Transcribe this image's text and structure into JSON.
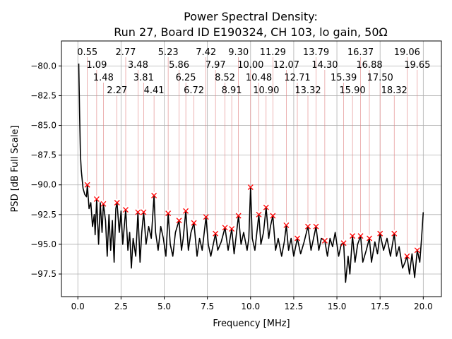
{
  "chart_data": {
    "type": "line",
    "title": "Power Spectral Density:",
    "subtitle": "Run 27, Board ID E190324, CH 103, lo gain, 50Ω",
    "xlabel": "Frequency [MHz]",
    "ylabel": "PSD [dB Full Scale]",
    "xlim": [
      -0.95,
      21.05
    ],
    "ylim": [
      -99.4,
      -77.9
    ],
    "xticks": [
      0,
      2.5,
      5,
      7.5,
      10,
      12.5,
      15,
      17.5,
      20
    ],
    "xtick_labels": [
      "0.0",
      "2.5",
      "5.0",
      "7.5",
      "10.0",
      "12.5",
      "15.0",
      "17.5",
      "20.0"
    ],
    "yticks": [
      -80,
      -82.5,
      -85,
      -87.5,
      -90,
      -92.5,
      -95,
      -97.5
    ],
    "ytick_labels": [
      "−80.0",
      "−82.5",
      "−85.0",
      "−87.5",
      "−90.0",
      "−92.5",
      "−95.0",
      "−97.5"
    ],
    "grid": true,
    "line_color": "#000000",
    "marker_color": "#ff0000",
    "line": [
      [
        0.05,
        -79.8
      ],
      [
        0.1,
        -84
      ],
      [
        0.15,
        -87.5
      ],
      [
        0.2,
        -88.8
      ],
      [
        0.3,
        -90.3
      ],
      [
        0.4,
        -90.8
      ],
      [
        0.5,
        -91
      ],
      [
        0.55,
        -90
      ],
      [
        0.65,
        -92
      ],
      [
        0.75,
        -91.5
      ],
      [
        0.85,
        -93.5
      ],
      [
        0.95,
        -92.5
      ],
      [
        1.0,
        -94.2
      ],
      [
        1.09,
        -91.2
      ],
      [
        1.2,
        -95
      ],
      [
        1.3,
        -91.5
      ],
      [
        1.4,
        -94
      ],
      [
        1.48,
        -91.6
      ],
      [
        1.6,
        -93
      ],
      [
        1.7,
        -96
      ],
      [
        1.8,
        -92.5
      ],
      [
        1.9,
        -95.5
      ],
      [
        2.0,
        -93
      ],
      [
        2.1,
        -96.5
      ],
      [
        2.2,
        -92
      ],
      [
        2.27,
        -91.5
      ],
      [
        2.4,
        -94
      ],
      [
        2.5,
        -92.2
      ],
      [
        2.6,
        -95
      ],
      [
        2.77,
        -92.1
      ],
      [
        2.9,
        -95.5
      ],
      [
        3.0,
        -94
      ],
      [
        3.1,
        -97
      ],
      [
        3.2,
        -94.5
      ],
      [
        3.35,
        -96
      ],
      [
        3.48,
        -92.3
      ],
      [
        3.6,
        -96.5
      ],
      [
        3.7,
        -94
      ],
      [
        3.81,
        -92.3
      ],
      [
        3.95,
        -95
      ],
      [
        4.1,
        -93.5
      ],
      [
        4.25,
        -94.5
      ],
      [
        4.41,
        -90.9
      ],
      [
        4.5,
        -94
      ],
      [
        4.65,
        -95.5
      ],
      [
        4.8,
        -93.5
      ],
      [
        4.95,
        -94.5
      ],
      [
        5.1,
        -96
      ],
      [
        5.23,
        -92.4
      ],
      [
        5.35,
        -95
      ],
      [
        5.5,
        -96
      ],
      [
        5.65,
        -94
      ],
      [
        5.86,
        -93
      ],
      [
        6.0,
        -95.5
      ],
      [
        6.1,
        -94.5
      ],
      [
        6.25,
        -92.2
      ],
      [
        6.4,
        -95.5
      ],
      [
        6.55,
        -94
      ],
      [
        6.72,
        -93.2
      ],
      [
        6.9,
        -96
      ],
      [
        7.05,
        -94.5
      ],
      [
        7.2,
        -95.5
      ],
      [
        7.42,
        -92.7
      ],
      [
        7.55,
        -95
      ],
      [
        7.7,
        -96
      ],
      [
        7.97,
        -94.1
      ],
      [
        8.1,
        -95.5
      ],
      [
        8.3,
        -94.8
      ],
      [
        8.52,
        -93.6
      ],
      [
        8.7,
        -95.5
      ],
      [
        8.91,
        -93.7
      ],
      [
        9.05,
        -95.8
      ],
      [
        9.15,
        -94.5
      ],
      [
        9.3,
        -92.6
      ],
      [
        9.45,
        -95
      ],
      [
        9.6,
        -94
      ],
      [
        9.8,
        -95.5
      ],
      [
        9.9,
        -94.5
      ],
      [
        10.0,
        -90.2
      ],
      [
        10.1,
        -94.5
      ],
      [
        10.25,
        -95.5
      ],
      [
        10.48,
        -92.5
      ],
      [
        10.6,
        -95
      ],
      [
        10.75,
        -94
      ],
      [
        10.9,
        -91.9
      ],
      [
        11.05,
        -94.5
      ],
      [
        11.15,
        -93.5
      ],
      [
        11.29,
        -92.6
      ],
      [
        11.45,
        -95.5
      ],
      [
        11.6,
        -94.5
      ],
      [
        11.8,
        -96
      ],
      [
        11.95,
        -94.8
      ],
      [
        12.07,
        -93.4
      ],
      [
        12.2,
        -95.5
      ],
      [
        12.35,
        -94.5
      ],
      [
        12.5,
        -96
      ],
      [
        12.71,
        -94.5
      ],
      [
        12.9,
        -95.8
      ],
      [
        13.1,
        -94.8
      ],
      [
        13.32,
        -93.5
      ],
      [
        13.5,
        -95.5
      ],
      [
        13.79,
        -93.5
      ],
      [
        13.95,
        -95.5
      ],
      [
        14.1,
        -94.5
      ],
      [
        14.3,
        -94.7
      ],
      [
        14.45,
        -96
      ],
      [
        14.6,
        -94.5
      ],
      [
        14.75,
        -95.2
      ],
      [
        14.9,
        -94
      ],
      [
        15.1,
        -96
      ],
      [
        15.25,
        -95
      ],
      [
        15.39,
        -94.9
      ],
      [
        15.5,
        -98.2
      ],
      [
        15.65,
        -96
      ],
      [
        15.75,
        -97.5
      ],
      [
        15.9,
        -94.3
      ],
      [
        16.05,
        -96.5
      ],
      [
        16.2,
        -95
      ],
      [
        16.37,
        -94.3
      ],
      [
        16.5,
        -96.5
      ],
      [
        16.7,
        -95.5
      ],
      [
        16.88,
        -94.5
      ],
      [
        17.0,
        -96.5
      ],
      [
        17.2,
        -94.8
      ],
      [
        17.35,
        -95.8
      ],
      [
        17.5,
        -94.1
      ],
      [
        17.7,
        -95.5
      ],
      [
        17.9,
        -94.5
      ],
      [
        18.1,
        -96
      ],
      [
        18.32,
        -94.1
      ],
      [
        18.45,
        -96
      ],
      [
        18.6,
        -95.2
      ],
      [
        18.8,
        -97
      ],
      [
        18.95,
        -96.5
      ],
      [
        19.06,
        -96
      ],
      [
        19.2,
        -97.5
      ],
      [
        19.35,
        -95.8
      ],
      [
        19.5,
        -97.8
      ],
      [
        19.65,
        -95.5
      ],
      [
        19.8,
        -96.5
      ],
      [
        19.9,
        -94.5
      ],
      [
        20.0,
        -92.3
      ]
    ],
    "peaks": [
      {
        "x": 0.55,
        "y": -90.0,
        "label": "0.55"
      },
      {
        "x": 1.09,
        "y": -91.2,
        "label": "1.09"
      },
      {
        "x": 1.48,
        "y": -91.6,
        "label": "1.48"
      },
      {
        "x": 2.27,
        "y": -91.5,
        "label": "2.27"
      },
      {
        "x": 2.77,
        "y": -92.1,
        "label": "2.77"
      },
      {
        "x": 3.48,
        "y": -92.3,
        "label": "3.48"
      },
      {
        "x": 3.81,
        "y": -92.3,
        "label": "3.81"
      },
      {
        "x": 4.41,
        "y": -90.9,
        "label": "4.41"
      },
      {
        "x": 5.23,
        "y": -92.4,
        "label": "5.23"
      },
      {
        "x": 5.86,
        "y": -93.0,
        "label": "5.86"
      },
      {
        "x": 6.25,
        "y": -92.2,
        "label": "6.25"
      },
      {
        "x": 6.72,
        "y": -93.2,
        "label": "6.72"
      },
      {
        "x": 7.42,
        "y": -92.7,
        "label": "7.42"
      },
      {
        "x": 7.97,
        "y": -94.1,
        "label": "7.97"
      },
      {
        "x": 8.52,
        "y": -93.6,
        "label": "8.52"
      },
      {
        "x": 8.91,
        "y": -93.7,
        "label": "8.91"
      },
      {
        "x": 9.3,
        "y": -92.6,
        "label": "9.30"
      },
      {
        "x": 10.0,
        "y": -90.2,
        "label": "10.00"
      },
      {
        "x": 10.48,
        "y": -92.5,
        "label": "10.48"
      },
      {
        "x": 10.9,
        "y": -91.9,
        "label": "10.90"
      },
      {
        "x": 11.29,
        "y": -92.6,
        "label": "11.29"
      },
      {
        "x": 12.07,
        "y": -93.4,
        "label": "12.07"
      },
      {
        "x": 12.71,
        "y": -94.5,
        "label": "12.71"
      },
      {
        "x": 13.32,
        "y": -93.5,
        "label": "13.32"
      },
      {
        "x": 13.79,
        "y": -93.5,
        "label": "13.79"
      },
      {
        "x": 14.3,
        "y": -94.7,
        "label": "14.30"
      },
      {
        "x": 15.39,
        "y": -94.9,
        "label": "15.39"
      },
      {
        "x": 15.9,
        "y": -94.3,
        "label": "15.90"
      },
      {
        "x": 16.37,
        "y": -94.3,
        "label": "16.37"
      },
      {
        "x": 16.88,
        "y": -94.5,
        "label": "16.88"
      },
      {
        "x": 17.5,
        "y": -94.1,
        "label": "17.50"
      },
      {
        "x": 18.32,
        "y": -94.1,
        "label": "18.32"
      },
      {
        "x": 19.06,
        "y": -96.0,
        "label": "19.06"
      },
      {
        "x": 19.65,
        "y": -95.5,
        "label": "19.65"
      }
    ]
  }
}
